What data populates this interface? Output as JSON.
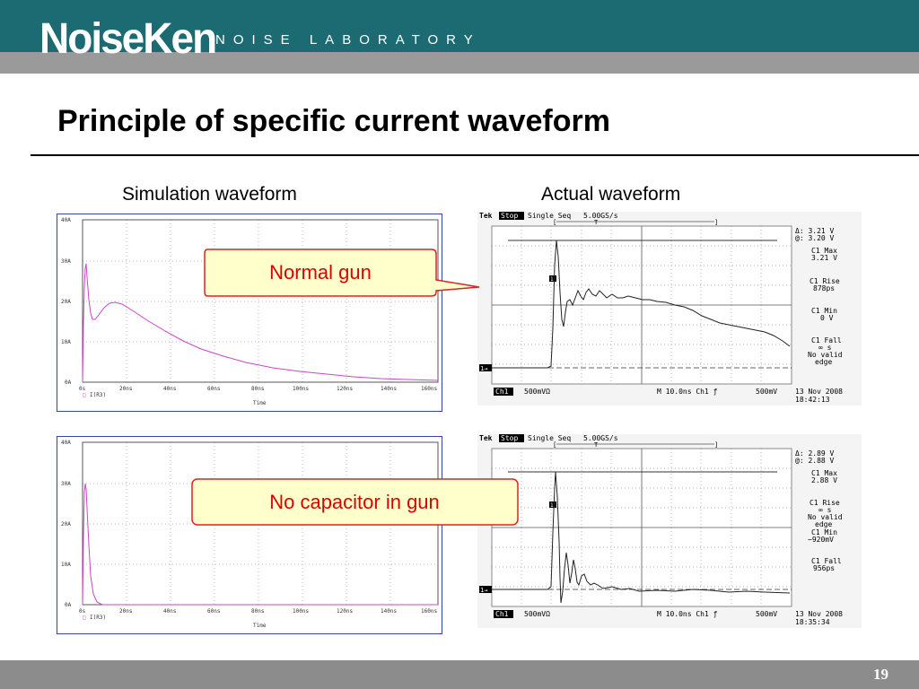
{
  "header": {
    "logo": "NoiseKen",
    "tagline": "NOISE LABORATORY"
  },
  "title": "Principle of specific current waveform",
  "labels": {
    "simulation": "Simulation waveform",
    "actual": "Actual waveform"
  },
  "callouts": {
    "normal": "Normal gun",
    "nocap": "No capacitor in gun"
  },
  "sim_axes": {
    "y_ticks": [
      "40A",
      "30A",
      "20A",
      "10A",
      "0A"
    ],
    "x_ticks": [
      "0s",
      "20ns",
      "40ns",
      "60ns",
      "80ns",
      "100ns",
      "120ns",
      "140ns",
      "160ns"
    ],
    "legend": "I(R3)",
    "xlabel": "Time"
  },
  "scope_top": {
    "header_brand": "Tek",
    "header_state": "Stop",
    "header_mode": "Single Seq",
    "header_rate": "5.00GS/s",
    "readouts": [
      "Δ: 3.21 V",
      "@: 3.20 V",
      "C1 Max",
      "3.21 V",
      "C1 Rise",
      "878ps",
      "C1 Min",
      "0 V",
      "C1 Fall",
      "∞ s",
      "No valid",
      "edge"
    ],
    "bottom_ch": "Ch1",
    "bottom_scale": "500mVΩ",
    "bottom_time": "M 10.0ns  Ch1  ƒ",
    "bottom_trig": "500mV",
    "date": "13 Nov 2008",
    "time": "18:42:13"
  },
  "scope_bottom": {
    "header_brand": "Tek",
    "header_state": "Stop",
    "header_mode": "Single Seq",
    "header_rate": "5.00GS/s",
    "readouts": [
      "Δ: 2.89 V",
      "@: 2.88 V",
      "C1 Max",
      "2.88 V",
      "C1 Rise",
      "∞ s",
      "No valid",
      "edge",
      "C1 Min",
      "−920mV",
      "C1 Fall",
      "956ps"
    ],
    "bottom_ch": "Ch1",
    "bottom_scale": "500mVΩ",
    "bottom_time": "M 10.0ns  Ch1  ƒ",
    "bottom_trig": "500mV",
    "date": "13 Nov 2008",
    "time": "18:35:34"
  },
  "page_number": "19",
  "colors": {
    "header": "#1d6b72",
    "band": "#9a9a9a",
    "callout_fill": "#ffffcc",
    "callout_border": "#dd2222",
    "sim_trace": "#cc44cc"
  }
}
